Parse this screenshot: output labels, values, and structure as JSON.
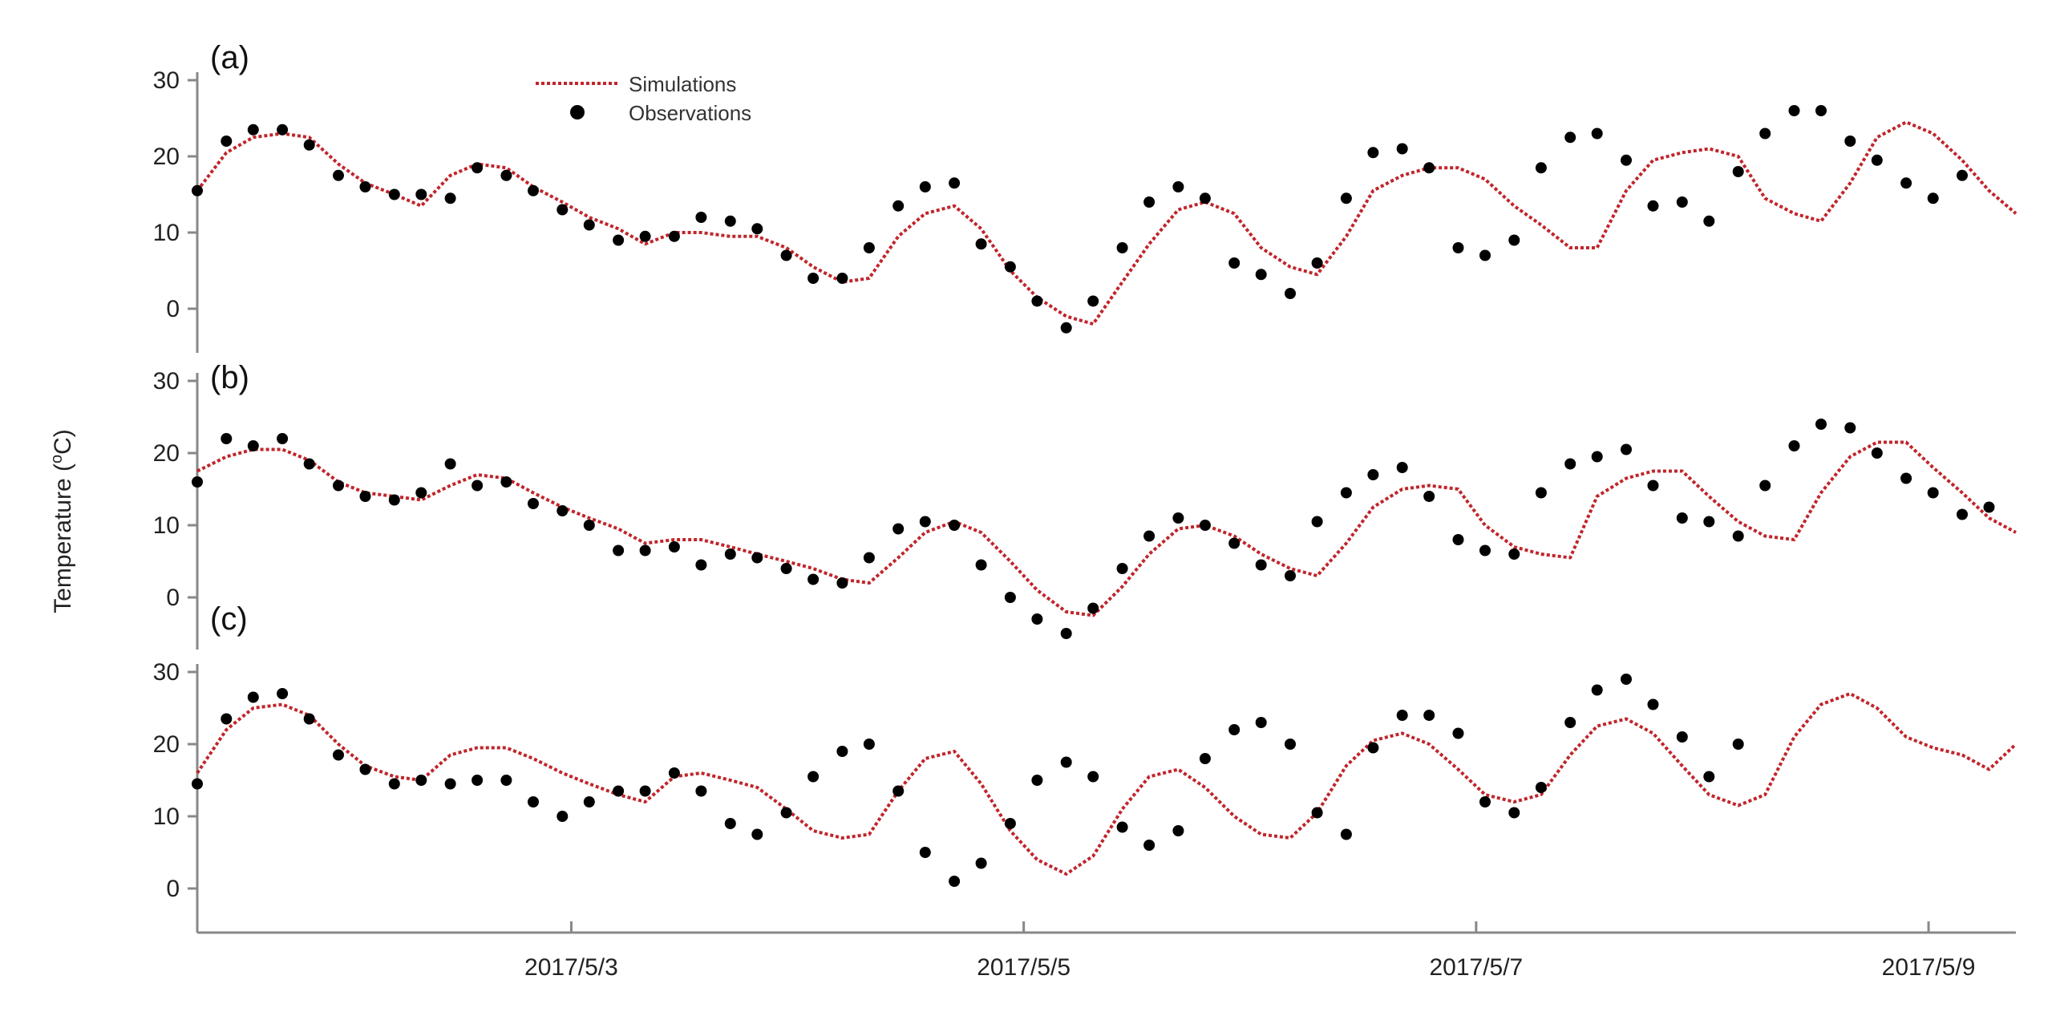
{
  "figure": {
    "ylabel": "Temperature (",
    "ylabel_sup": "o",
    "ylabel_unit": "C)"
  },
  "legend": {
    "simulations": "Simulations",
    "observations": "Observations"
  },
  "colors": {
    "simulation_line": "#c0252b",
    "observation_marker": "#000000",
    "axis": "#888888"
  },
  "chart_data": [
    {
      "type": "line",
      "panel": "(a)",
      "x_axis": {
        "unit": "days since start",
        "range": [
          0,
          8.12
        ],
        "ticks": [
          {
            "x": 1.67,
            "label": "2017/5/3"
          },
          {
            "x": 3.69,
            "label": "2017/5/5"
          },
          {
            "x": 5.71,
            "label": "2017/5/7"
          },
          {
            "x": 7.73,
            "label": "2017/5/9"
          }
        ]
      },
      "ylim": [
        -5,
        33
      ],
      "yticks": [
        0,
        10,
        20,
        30
      ],
      "series": [
        {
          "name": "Simulations",
          "style": "dotted-line",
          "color": "#c0252b",
          "x": [
            0,
            0.13,
            0.25,
            0.38,
            0.5,
            0.63,
            0.75,
            0.88,
            1.0,
            1.13,
            1.25,
            1.38,
            1.5,
            1.63,
            1.75,
            1.88,
            2.0,
            2.13,
            2.25,
            2.38,
            2.5,
            2.63,
            2.75,
            2.88,
            3.0,
            3.13,
            3.25,
            3.38,
            3.5,
            3.63,
            3.75,
            3.88,
            4.0,
            4.13,
            4.25,
            4.38,
            4.5,
            4.63,
            4.75,
            4.88,
            5.0,
            5.13,
            5.25,
            5.38,
            5.5,
            5.63,
            5.75,
            5.88,
            6.0,
            6.13,
            6.25,
            6.38,
            6.5,
            6.63,
            6.75,
            6.88,
            7.0,
            7.13,
            7.25,
            7.38,
            7.5,
            7.63,
            7.75,
            7.88,
            8.0,
            8.12
          ],
          "y": [
            15.5,
            20.5,
            22.5,
            23,
            22.5,
            19,
            16.5,
            15,
            13.5,
            17.5,
            19,
            18.5,
            16,
            14,
            12,
            10.5,
            8.5,
            10,
            10,
            9.5,
            9.5,
            8,
            5.5,
            3.5,
            4,
            9.5,
            12.5,
            13.5,
            10.5,
            5,
            1.5,
            -1,
            -2,
            3.5,
            8.5,
            13,
            14,
            12.5,
            8,
            5.5,
            4.5,
            9.5,
            15.5,
            17.5,
            18.5,
            18.5,
            17,
            13.5,
            11,
            8,
            8,
            15.5,
            19.5,
            20.5,
            21,
            20,
            14.5,
            12.5,
            11.5,
            16.5,
            22.5,
            24.5,
            23,
            19.5,
            15.5,
            12.5
          ]
        },
        {
          "name": "Observations",
          "style": "markers",
          "color": "#000000",
          "x": [
            0,
            0.13,
            0.25,
            0.38,
            0.5,
            0.63,
            0.75,
            0.88,
            1.0,
            1.13,
            1.25,
            1.38,
            1.5,
            1.63,
            1.75,
            1.88,
            2.0,
            2.13,
            2.25,
            2.38,
            2.5,
            2.63,
            2.75,
            2.88,
            3.0,
            3.13,
            3.25,
            3.38,
            3.5,
            3.63,
            3.75,
            3.88,
            4.0,
            4.13,
            4.25,
            4.38,
            4.5,
            4.63,
            4.75,
            4.88,
            5.0,
            5.13,
            5.25,
            5.38,
            5.5,
            5.63,
            5.75,
            5.88,
            6.0,
            6.13,
            6.25,
            6.38,
            6.5,
            6.63,
            6.75,
            6.88,
            7.0,
            7.13,
            7.25,
            7.38,
            7.5,
            7.63,
            7.75,
            7.88,
            8.0,
            8.12
          ],
          "y": [
            15.5,
            22,
            23.5,
            23.5,
            21.5,
            17.5,
            16,
            15,
            15,
            14.5,
            18.5,
            17.5,
            15.5,
            13,
            11,
            9,
            9.5,
            9.5,
            12,
            11.5,
            10.5,
            7,
            4,
            4,
            8,
            13.5,
            16,
            16.5,
            8.5,
            5.5,
            1,
            -2.5,
            1,
            8,
            14,
            16,
            14.5,
            6,
            4.5,
            2,
            6,
            14.5,
            20.5,
            21,
            18.5,
            8,
            7,
            9,
            18.5,
            22.5,
            23,
            19.5,
            13.5,
            14,
            11.5,
            18,
            23,
            26,
            26,
            22,
            19.5,
            16.5,
            14.5,
            17.5,
            null,
            null
          ]
        }
      ]
    },
    {
      "type": "line",
      "panel": "(b)",
      "x_axis": {
        "unit": "days since start",
        "range": [
          0,
          8.12
        ]
      },
      "ylim": [
        -5,
        33
      ],
      "yticks": [
        0,
        10,
        20,
        30
      ],
      "series": [
        {
          "name": "Simulations",
          "style": "dotted-line",
          "color": "#c0252b",
          "x": [
            0,
            0.13,
            0.25,
            0.38,
            0.5,
            0.63,
            0.75,
            0.88,
            1.0,
            1.13,
            1.25,
            1.38,
            1.5,
            1.63,
            1.75,
            1.88,
            2.0,
            2.13,
            2.25,
            2.38,
            2.5,
            2.63,
            2.75,
            2.88,
            3.0,
            3.13,
            3.25,
            3.38,
            3.5,
            3.63,
            3.75,
            3.88,
            4.0,
            4.13,
            4.25,
            4.38,
            4.5,
            4.63,
            4.75,
            4.88,
            5.0,
            5.13,
            5.25,
            5.38,
            5.5,
            5.63,
            5.75,
            5.88,
            6.0,
            6.13,
            6.25,
            6.38,
            6.5,
            6.63,
            6.75,
            6.88,
            7.0,
            7.13,
            7.25,
            7.38,
            7.5,
            7.63,
            7.75,
            7.88,
            8.0,
            8.12
          ],
          "y": [
            17.5,
            19.5,
            20.5,
            20.5,
            19,
            16,
            14.5,
            14,
            13.5,
            15.5,
            17,
            16.5,
            14.5,
            12.5,
            11,
            9.5,
            7.5,
            8,
            8,
            7,
            6,
            5,
            4,
            2.5,
            2,
            5.5,
            9,
            10.5,
            9,
            5,
            1,
            -2,
            -2.5,
            1.5,
            6,
            9.5,
            10,
            8.5,
            6,
            4,
            3,
            7.5,
            12.5,
            15,
            15.5,
            15,
            10,
            7,
            6,
            5.5,
            14,
            16.5,
            17.5,
            17.5,
            14,
            10.5,
            8.5,
            8,
            14.5,
            19.5,
            21.5,
            21.5,
            18,
            14.5,
            11,
            9
          ]
        },
        {
          "name": "Observations",
          "style": "markers",
          "color": "#000000",
          "x": [
            0,
            0.13,
            0.25,
            0.38,
            0.5,
            0.63,
            0.75,
            0.88,
            1.0,
            1.13,
            1.25,
            1.38,
            1.5,
            1.63,
            1.75,
            1.88,
            2.0,
            2.13,
            2.25,
            2.38,
            2.5,
            2.63,
            2.75,
            2.88,
            3.0,
            3.13,
            3.25,
            3.38,
            3.5,
            3.63,
            3.75,
            3.88,
            4.0,
            4.13,
            4.25,
            4.38,
            4.5,
            4.63,
            4.75,
            4.88,
            5.0,
            5.13,
            5.25,
            5.38,
            5.5,
            5.63,
            5.75,
            5.88,
            6.0,
            6.13,
            6.25,
            6.38,
            6.5,
            6.63,
            6.75,
            6.88,
            7.0,
            7.13,
            7.25,
            7.38,
            7.5,
            7.63,
            7.75,
            7.88,
            8.0,
            8.12
          ],
          "y": [
            16,
            22,
            21,
            22,
            18.5,
            15.5,
            14,
            13.5,
            14.5,
            18.5,
            15.5,
            16,
            13,
            12,
            10,
            6.5,
            6.5,
            7,
            4.5,
            6,
            5.5,
            4,
            2.5,
            2,
            5.5,
            9.5,
            10.5,
            10,
            4.5,
            0,
            -3,
            -5,
            -1.5,
            4,
            8.5,
            11,
            10,
            7.5,
            4.5,
            3,
            10.5,
            14.5,
            17,
            18,
            14,
            8,
            6.5,
            6,
            14.5,
            18.5,
            19.5,
            20.5,
            15.5,
            11,
            10.5,
            8.5,
            15.5,
            21,
            24,
            23.5,
            20,
            16.5,
            14.5,
            11.5,
            12.5,
            null
          ]
        }
      ]
    },
    {
      "type": "line",
      "panel": "(c)",
      "x_axis": {
        "unit": "days since start",
        "range": [
          0,
          8.12
        ]
      },
      "ylim": [
        -5,
        33
      ],
      "yticks": [
        0,
        10,
        20,
        30
      ],
      "series": [
        {
          "name": "Simulations",
          "style": "dotted-line",
          "color": "#c0252b",
          "x": [
            0,
            0.13,
            0.25,
            0.38,
            0.5,
            0.63,
            0.75,
            0.88,
            1.0,
            1.13,
            1.25,
            1.38,
            1.5,
            1.63,
            1.75,
            1.88,
            2.0,
            2.13,
            2.25,
            2.38,
            2.5,
            2.63,
            2.75,
            2.88,
            3.0,
            3.13,
            3.25,
            3.38,
            3.5,
            3.63,
            3.75,
            3.88,
            4.0,
            4.13,
            4.25,
            4.38,
            4.5,
            4.63,
            4.75,
            4.88,
            5.0,
            5.13,
            5.25,
            5.38,
            5.5,
            5.63,
            5.75,
            5.88,
            6.0,
            6.13,
            6.25,
            6.38,
            6.5,
            6.63,
            6.75,
            6.88,
            7.0,
            7.13,
            7.25,
            7.38,
            7.5,
            7.63,
            7.75,
            7.88,
            8.0,
            8.12
          ],
          "y": [
            16,
            22,
            25,
            25.5,
            24,
            20,
            17,
            15.5,
            15,
            18.5,
            19.5,
            19.5,
            18,
            16,
            14.5,
            13,
            12,
            15.5,
            16,
            15,
            14,
            11,
            8,
            7,
            7.5,
            13.5,
            18,
            19,
            14.5,
            8,
            4,
            2,
            4.5,
            11,
            15.5,
            16.5,
            14,
            10,
            7.5,
            7,
            10.5,
            17,
            20.5,
            21.5,
            20,
            16.5,
            13,
            12,
            13,
            18.5,
            22.5,
            23.5,
            21.5,
            17,
            13,
            11.5,
            13,
            21,
            25.5,
            27,
            25,
            21,
            19.5,
            18.5,
            16.5,
            20
          ]
        },
        {
          "name": "Observations",
          "style": "markers",
          "color": "#000000",
          "x": [
            0,
            0.13,
            0.25,
            0.38,
            0.5,
            0.63,
            0.75,
            0.88,
            1.0,
            1.13,
            1.25,
            1.38,
            1.5,
            1.63,
            1.75,
            1.88,
            2.0,
            2.13,
            2.25,
            2.38,
            2.5,
            2.63,
            2.75,
            2.88,
            3.0,
            3.13,
            3.25,
            3.38,
            3.5,
            3.63,
            3.75,
            3.88,
            4.0,
            4.13,
            4.25,
            4.38,
            4.5,
            4.63,
            4.75,
            4.88,
            5.0,
            5.13,
            5.25,
            5.38,
            5.5,
            5.63,
            5.75,
            5.88,
            6.0,
            6.13,
            6.25,
            6.38,
            6.5,
            6.63,
            6.75,
            6.88,
            7.0,
            7.13,
            7.25,
            7.38,
            7.5,
            7.63,
            7.75,
            7.88,
            8.0,
            8.12
          ],
          "y": [
            14.5,
            23.5,
            26.5,
            27,
            23.5,
            18.5,
            16.5,
            14.5,
            15,
            14.5,
            15,
            15,
            12,
            10,
            12,
            13.5,
            13.5,
            16,
            13.5,
            9,
            7.5,
            10.5,
            15.5,
            19,
            20,
            13.5,
            5,
            1,
            3.5,
            9,
            15,
            17.5,
            15.5,
            8.5,
            6,
            8,
            18,
            22,
            23,
            20,
            10.5,
            7.5,
            19.5,
            24,
            24,
            21.5,
            12,
            10.5,
            14,
            23,
            27.5,
            29,
            25.5,
            21,
            15.5,
            20,
            null,
            null,
            null,
            null,
            null,
            null,
            null,
            null,
            null,
            null
          ]
        }
      ]
    }
  ]
}
